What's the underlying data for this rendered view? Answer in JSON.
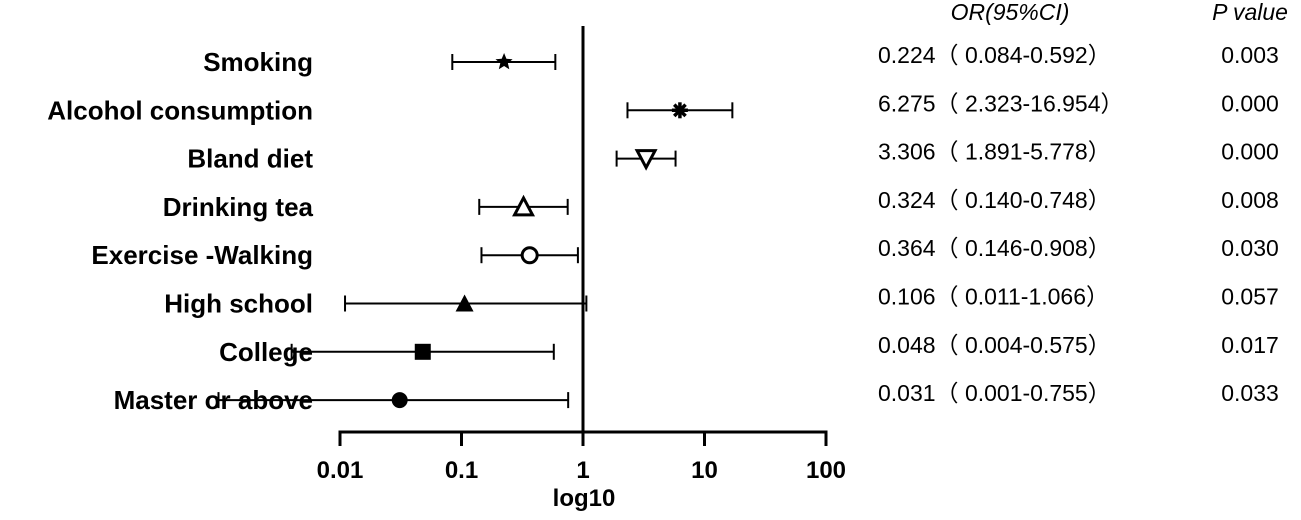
{
  "chart_data": {
    "type": "forest",
    "xlabel": "log10",
    "x_scale": "log",
    "xlim": [
      0.01,
      100
    ],
    "x_ticks": [
      "0.01",
      "0.1",
      "1",
      "10",
      "100"
    ],
    "reference_line": 1,
    "columns": {
      "or": "OR(95%CI)",
      "p": "P value"
    },
    "rows": [
      {
        "label": "Smoking",
        "or": 0.224,
        "lo": 0.084,
        "hi": 0.592,
        "or_text": "0.224（ 0.084-0.592）",
        "p": "0.003",
        "marker": "star"
      },
      {
        "label": "Alcohol consumption",
        "or": 6.275,
        "lo": 2.323,
        "hi": 16.954,
        "or_text": "6.275（ 2.323-16.954）",
        "p": "0.000",
        "marker": "asterisk"
      },
      {
        "label": "Bland diet",
        "or": 3.306,
        "lo": 1.891,
        "hi": 5.778,
        "or_text": "3.306（ 1.891-5.778）",
        "p": "0.000",
        "marker": "triangle-down-open"
      },
      {
        "label": "Drinking tea",
        "or": 0.324,
        "lo": 0.14,
        "hi": 0.748,
        "or_text": "0.324（ 0.140-0.748）",
        "p": "0.008",
        "marker": "triangle-up-open"
      },
      {
        "label": "Exercise -Walking",
        "or": 0.364,
        "lo": 0.146,
        "hi": 0.908,
        "or_text": "0.364（ 0.146-0.908）",
        "p": "0.030",
        "marker": "circle-open"
      },
      {
        "label": "High school",
        "or": 0.106,
        "lo": 0.011,
        "hi": 1.066,
        "or_text": "0.106（ 0.011-1.066）",
        "p": "0.057",
        "marker": "triangle-up-filled"
      },
      {
        "label": "College",
        "or": 0.048,
        "lo": 0.004,
        "hi": 0.575,
        "or_text": "0.048（ 0.004-0.575）",
        "p": "0.017",
        "marker": "square-filled"
      },
      {
        "label": "Master or above",
        "or": 0.031,
        "lo": 0.001,
        "hi": 0.755,
        "or_text": "0.031（ 0.001-0.755）",
        "p": "0.033",
        "marker": "circle-filled"
      }
    ]
  }
}
